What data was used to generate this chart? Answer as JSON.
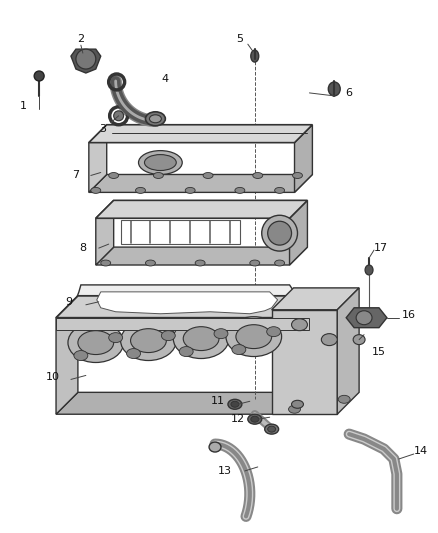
{
  "bg_color": "#ffffff",
  "fig_width": 4.38,
  "fig_height": 5.33,
  "dpi": 100,
  "ec": "#333333",
  "fc_light": "#e8e8e8",
  "fc_mid": "#cccccc",
  "fc_dark": "#999999",
  "label_color": "#111111",
  "label_fs": 8.0,
  "callout_color": "#444444"
}
